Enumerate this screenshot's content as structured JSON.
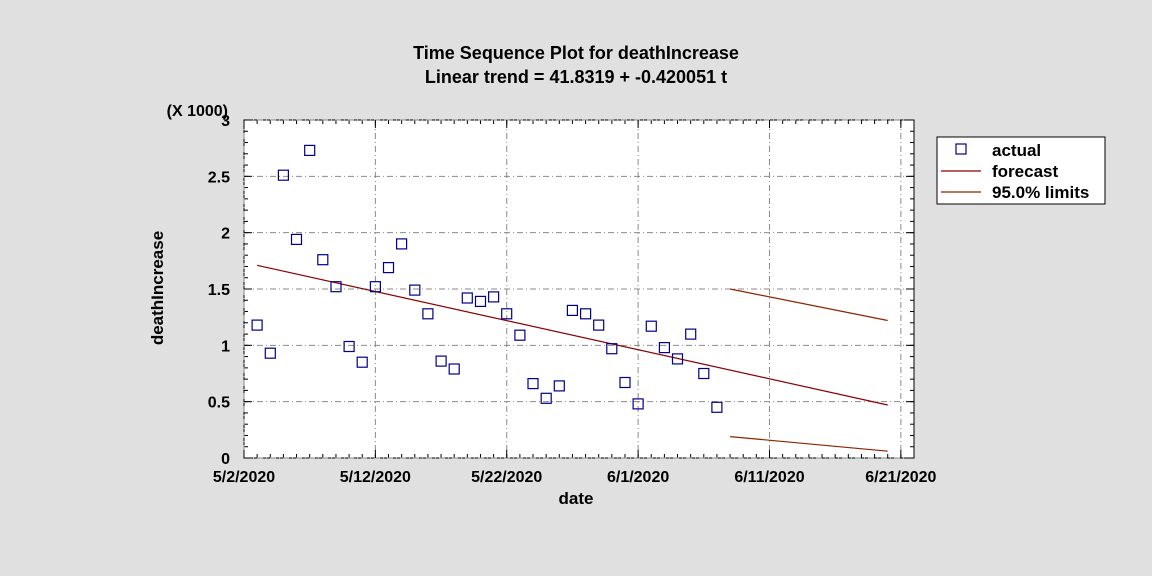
{
  "chart_data": {
    "type": "scatter",
    "title": "Time Sequence Plot for deathIncrease",
    "subtitle": "Linear trend = 41.8319 + -0.420051 t",
    "xlabel": "date",
    "ylabel": "deathIncrease",
    "y_multiplier_label": "(X 1000)",
    "xlim": [
      "2020-05-02",
      "2020-06-22"
    ],
    "ylim": [
      0,
      3
    ],
    "x_ticks": [
      "5/2/2020",
      "5/12/2020",
      "5/22/2020",
      "6/1/2020",
      "6/11/2020",
      "6/21/2020"
    ],
    "y_ticks": [
      "0",
      "0.5",
      "1",
      "1.5",
      "2",
      "2.5",
      "3"
    ],
    "grid": true,
    "legend_position": "right",
    "legend": [
      "actual",
      "forecast",
      "95.0% limits"
    ],
    "colors": {
      "actual": "#00008b",
      "forecast": "#8b0000",
      "limits": "#8b2500"
    },
    "series": [
      {
        "name": "actual",
        "style": "hollow-square",
        "points": [
          [
            "2020-05-03",
            1.18
          ],
          [
            "2020-05-04",
            0.93
          ],
          [
            "2020-05-05",
            2.51
          ],
          [
            "2020-05-06",
            1.94
          ],
          [
            "2020-05-07",
            2.73
          ],
          [
            "2020-05-08",
            1.76
          ],
          [
            "2020-05-09",
            1.52
          ],
          [
            "2020-05-10",
            0.99
          ],
          [
            "2020-05-11",
            0.85
          ],
          [
            "2020-05-12",
            1.52
          ],
          [
            "2020-05-13",
            1.69
          ],
          [
            "2020-05-14",
            1.9
          ],
          [
            "2020-05-15",
            1.49
          ],
          [
            "2020-05-16",
            1.28
          ],
          [
            "2020-05-17",
            0.86
          ],
          [
            "2020-05-18",
            0.79
          ],
          [
            "2020-05-19",
            1.42
          ],
          [
            "2020-05-20",
            1.39
          ],
          [
            "2020-05-21",
            1.43
          ],
          [
            "2020-05-22",
            1.28
          ],
          [
            "2020-05-23",
            1.09
          ],
          [
            "2020-05-24",
            0.66
          ],
          [
            "2020-05-25",
            0.53
          ],
          [
            "2020-05-26",
            0.64
          ],
          [
            "2020-05-27",
            1.31
          ],
          [
            "2020-05-28",
            1.28
          ],
          [
            "2020-05-29",
            1.18
          ],
          [
            "2020-05-30",
            0.97
          ],
          [
            "2020-05-31",
            0.67
          ],
          [
            "2020-06-01",
            0.48
          ],
          [
            "2020-06-02",
            1.17
          ],
          [
            "2020-06-03",
            0.98
          ],
          [
            "2020-06-04",
            0.88
          ],
          [
            "2020-06-05",
            1.1
          ],
          [
            "2020-06-06",
            0.75
          ],
          [
            "2020-06-07",
            0.45
          ]
        ]
      },
      {
        "name": "forecast",
        "style": "line",
        "points": [
          [
            "2020-05-03",
            1.71
          ],
          [
            "2020-06-20",
            0.47
          ]
        ]
      },
      {
        "name": "95.0% limits",
        "style": "line",
        "segments": [
          [
            [
              "2020-06-08",
              1.5
            ],
            [
              "2020-06-20",
              1.22
            ]
          ],
          [
            [
              "2020-06-08",
              0.19
            ],
            [
              "2020-06-20",
              0.06
            ]
          ]
        ]
      }
    ]
  }
}
